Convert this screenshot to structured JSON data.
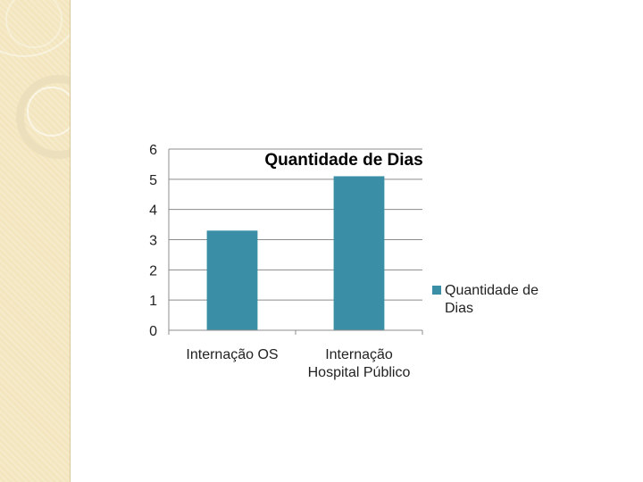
{
  "slide": {
    "accent_color": "#f3e6bf"
  },
  "chart_data": {
    "type": "bar",
    "title": "Quantidade de Dias",
    "categories": [
      "Internação OS",
      "Internação Hospital Público"
    ],
    "series": [
      {
        "name": "Quantidade de Dias",
        "values": [
          3.3,
          5.1
        ],
        "color": "#3a8fa7"
      }
    ],
    "ylim": [
      0,
      6
    ],
    "yticks": [
      0,
      1,
      2,
      3,
      4,
      5,
      6
    ],
    "grid": true,
    "legend_position": "right"
  }
}
